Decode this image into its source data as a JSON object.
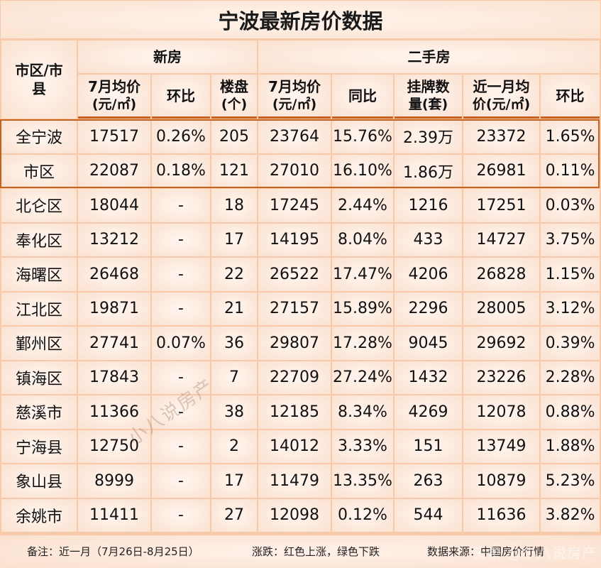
{
  "title": "宁波最新房价数据",
  "header": {
    "region": "市区/市县",
    "groups": {
      "new": "新房",
      "resale": "二手房"
    },
    "new_cols": [
      {
        "line1": "7月均价",
        "line2": "(元/㎡)"
      },
      {
        "line1": "环比",
        "line2": ""
      },
      {
        "line1": "楼盘",
        "line2": "(个)"
      }
    ],
    "resale_cols": [
      {
        "line1": "7月均价",
        "line2": "(元/㎡)"
      },
      {
        "line1": "同比",
        "line2": ""
      },
      {
        "line1": "挂牌数",
        "line2": "量(套)"
      },
      {
        "line1": "近一月均",
        "line2": "价(元/㎡)"
      },
      {
        "line1": "环比",
        "line2": ""
      }
    ]
  },
  "rows": [
    {
      "name": "全宁波",
      "new_price": "17517",
      "new_mom": "0.26%",
      "new_mom_color": "green",
      "projects": "205",
      "resale_price": "23764",
      "yoy": "15.76%",
      "yoy_color": "red",
      "listings": "2.39万",
      "recent_price": "23372",
      "resale_mom": "1.65%",
      "resale_mom_color": "green"
    },
    {
      "name": "市区",
      "new_price": "22087",
      "new_mom": "0.18%",
      "new_mom_color": "green",
      "projects": "121",
      "resale_price": "27010",
      "yoy": "16.10%",
      "yoy_color": "red",
      "listings": "1.86万",
      "recent_price": "26981",
      "resale_mom": "0.11%",
      "resale_mom_color": "green"
    },
    {
      "name": "北仑区",
      "new_price": "18044",
      "new_mom": "-",
      "new_mom_color": "dash",
      "projects": "18",
      "resale_price": "17245",
      "yoy": "2.44%",
      "yoy_color": "red",
      "listings": "1216",
      "recent_price": "17251",
      "resale_mom": "0.03%",
      "resale_mom_color": "red"
    },
    {
      "name": "奉化区",
      "new_price": "13212",
      "new_mom": "-",
      "new_mom_color": "dash",
      "projects": "17",
      "resale_price": "14195",
      "yoy": "8.04%",
      "yoy_color": "red",
      "listings": "433",
      "recent_price": "14727",
      "resale_mom": "3.75%",
      "resale_mom_color": "red"
    },
    {
      "name": "海曙区",
      "new_price": "26468",
      "new_mom": "-",
      "new_mom_color": "dash",
      "projects": "22",
      "resale_price": "26522",
      "yoy": "17.47%",
      "yoy_color": "red",
      "listings": "4206",
      "recent_price": "26828",
      "resale_mom": "1.15%",
      "resale_mom_color": "red"
    },
    {
      "name": "江北区",
      "new_price": "19871",
      "new_mom": "-",
      "new_mom_color": "dash",
      "projects": "21",
      "resale_price": "27157",
      "yoy": "15.89%",
      "yoy_color": "red",
      "listings": "2296",
      "recent_price": "28005",
      "resale_mom": "3.12%",
      "resale_mom_color": "red"
    },
    {
      "name": "鄞州区",
      "new_price": "27741",
      "new_mom": "0.07%",
      "new_mom_color": "red",
      "projects": "36",
      "resale_price": "29807",
      "yoy": "17.28%",
      "yoy_color": "red",
      "listings": "9045",
      "recent_price": "29692",
      "resale_mom": "0.39%",
      "resale_mom_color": "green"
    },
    {
      "name": "镇海区",
      "new_price": "17843",
      "new_mom": "-",
      "new_mom_color": "dash",
      "projects": "7",
      "resale_price": "22709",
      "yoy": "27.24%",
      "yoy_color": "red",
      "listings": "1432",
      "recent_price": "23226",
      "resale_mom": "2.28%",
      "resale_mom_color": "red"
    },
    {
      "name": "慈溪市",
      "new_price": "11366",
      "new_mom": "-",
      "new_mom_color": "dash",
      "projects": "38",
      "resale_price": "12185",
      "yoy": "8.34%",
      "yoy_color": "red",
      "listings": "4269",
      "recent_price": "12078",
      "resale_mom": "0.88%",
      "resale_mom_color": "green"
    },
    {
      "name": "宁海县",
      "new_price": "12750",
      "new_mom": "-",
      "new_mom_color": "dash",
      "projects": "2",
      "resale_price": "14012",
      "yoy": "3.33%",
      "yoy_color": "red",
      "listings": "151",
      "recent_price": "13749",
      "resale_mom": "1.88%",
      "resale_mom_color": "green"
    },
    {
      "name": "象山县",
      "new_price": "8999",
      "new_mom": "-",
      "new_mom_color": "dash",
      "projects": "17",
      "resale_price": "11479",
      "yoy": "13.35%",
      "yoy_color": "red",
      "listings": "263",
      "recent_price": "10879",
      "resale_mom": "5.23%",
      "resale_mom_color": "green"
    },
    {
      "name": "余姚市",
      "new_price": "11411",
      "new_mom": "-",
      "new_mom_color": "dash",
      "projects": "27",
      "resale_price": "12098",
      "yoy": "0.12%",
      "yoy_color": "green",
      "listings": "544",
      "recent_price": "11636",
      "resale_mom": "3.82%",
      "resale_mom_color": "green"
    }
  ],
  "footer": {
    "note": "备注：近一月（7月26日-8月25日）",
    "legend": "涨跌：红色上涨，绿色下跌",
    "source": "数据来源：中国房价行情"
  },
  "watermark": {
    "center": "小八说房产",
    "corner": "头条 @小八说房产"
  },
  "colors": {
    "up": "#e8202a",
    "down": "#1fa84e",
    "border_accent": "#c8621f",
    "grid": "#f6c9ab"
  }
}
